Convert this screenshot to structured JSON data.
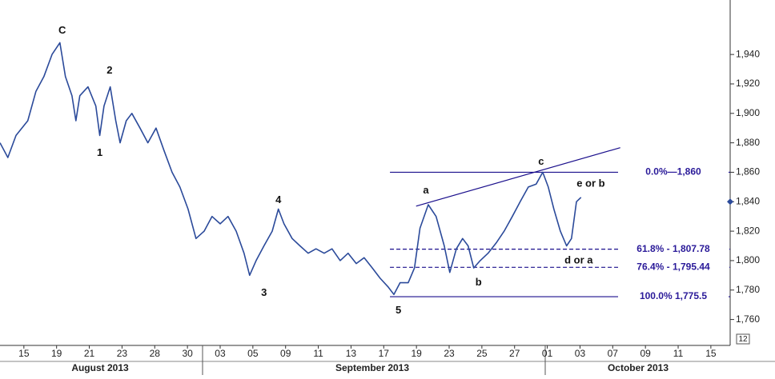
{
  "chart_data": {
    "type": "line",
    "xlim": [
      -0.73,
      21.59
    ],
    "xticks": [
      {
        "value": 0,
        "label": "15"
      },
      {
        "value": 1,
        "label": "19"
      },
      {
        "value": 2,
        "label": "21"
      },
      {
        "value": 3,
        "label": "23"
      },
      {
        "value": 4,
        "label": "28"
      },
      {
        "value": 5,
        "label": "30"
      },
      {
        "value": 6,
        "label": "03"
      },
      {
        "value": 7,
        "label": "05"
      },
      {
        "value": 8,
        "label": "09"
      },
      {
        "value": 9,
        "label": "11"
      },
      {
        "value": 10,
        "label": "13"
      },
      {
        "value": 11,
        "label": "17"
      },
      {
        "value": 12,
        "label": "19"
      },
      {
        "value": 13,
        "label": "23"
      },
      {
        "value": 14,
        "label": "25"
      },
      {
        "value": 15,
        "label": "27"
      },
      {
        "value": 16,
        "label": "01"
      },
      {
        "value": 17,
        "label": "03"
      },
      {
        "value": 18,
        "label": "07"
      },
      {
        "value": 19,
        "label": "09"
      },
      {
        "value": 20,
        "label": "11"
      },
      {
        "value": 21,
        "label": "15"
      }
    ],
    "ylim": [
      1742.4,
      1977
    ],
    "yticks": [
      {
        "value": 1760,
        "label": "1,760"
      },
      {
        "value": 1780,
        "label": "1,780"
      },
      {
        "value": 1800,
        "label": "1,800"
      },
      {
        "value": 1820,
        "label": "1,820"
      },
      {
        "value": 1840,
        "label": "1,840"
      },
      {
        "value": 1860,
        "label": "1,860"
      },
      {
        "value": 1880,
        "label": "1,880"
      },
      {
        "value": 1900,
        "label": "1,900"
      },
      {
        "value": 1920,
        "label": "1,920"
      },
      {
        "value": 1940,
        "label": "1,940"
      }
    ],
    "months": [
      "August 2013",
      "September 2013",
      "October 2013"
    ],
    "corner_label": "12",
    "last_price": 1840,
    "series": [
      {
        "color": "#2b4a9a",
        "x": [
          -0.73,
          -0.49,
          -0.24,
          0.12,
          0.37,
          0.61,
          0.86,
          1.1,
          1.27,
          1.47,
          1.59,
          1.71,
          1.96,
          2.2,
          2.32,
          2.45,
          2.64,
          2.81,
          2.94,
          3.13,
          3.3,
          3.55,
          3.79,
          4.04,
          4.28,
          4.53,
          4.77,
          5.02,
          5.26,
          5.51,
          5.75,
          6.0,
          6.24,
          6.49,
          6.73,
          6.9,
          7.1,
          7.34,
          7.59,
          7.78,
          7.95,
          8.2,
          8.44,
          8.69,
          8.93,
          9.18,
          9.42,
          9.67,
          9.91,
          10.16,
          10.4,
          10.65,
          10.89,
          11.14,
          11.31,
          11.5,
          11.75,
          11.94,
          12.11,
          12.36,
          12.6,
          12.85,
          13.02,
          13.22,
          13.41,
          13.58,
          13.75,
          13.95,
          14.19,
          14.44,
          14.68,
          14.93,
          15.17,
          15.42,
          15.66,
          15.86,
          16.03,
          16.2,
          16.4,
          16.59,
          16.74,
          16.89,
          17.03
        ],
        "values": [
          1880,
          1870,
          1885,
          1895,
          1915,
          1925,
          1940,
          1948,
          1925,
          1912,
          1895,
          1912,
          1918,
          1905,
          1885,
          1905,
          1918,
          1895,
          1880,
          1895,
          1900,
          1890,
          1880,
          1890,
          1875,
          1860,
          1850,
          1835,
          1815,
          1820,
          1830,
          1825,
          1830,
          1820,
          1805,
          1790,
          1800,
          1810,
          1820,
          1835,
          1825,
          1815,
          1810,
          1805,
          1808,
          1805,
          1808,
          1800,
          1805,
          1798,
          1802,
          1795,
          1788,
          1782,
          1777,
          1785,
          1785,
          1795,
          1822,
          1838,
          1830,
          1810,
          1792,
          1808,
          1815,
          1810,
          1795,
          1800,
          1805,
          1812,
          1820,
          1830,
          1840,
          1850,
          1852,
          1860,
          1850,
          1835,
          1820,
          1810,
          1815,
          1840,
          1843
        ]
      }
    ],
    "fib_levels": [
      {
        "label": "0.0%—1,860",
        "value": 1860,
        "style": "solid",
        "start_x": 11.19
      },
      {
        "label": "61.8% - 1,807.78",
        "value": 1807.78,
        "style": "dashed",
        "start_x": 11.19
      },
      {
        "label": "76.4% - 1,795.44",
        "value": 1795.44,
        "style": "dashed",
        "start_x": 11.19
      },
      {
        "label": "100.0% 1,775.5",
        "value": 1775.5,
        "style": "solid",
        "start_x": 11.19
      }
    ],
    "fib_color": "#1a0f8c",
    "trendline": {
      "x": [
        11.99,
        18.23
      ],
      "values": [
        1837,
        1876.7
      ]
    },
    "wave_labels": [
      {
        "text": "C",
        "x": 1.17,
        "y": 1956
      },
      {
        "text": "1",
        "x": 2.32,
        "y": 1873
      },
      {
        "text": "2",
        "x": 2.62,
        "y": 1929
      },
      {
        "text": "3",
        "x": 7.34,
        "y": 1778
      },
      {
        "text": "4",
        "x": 7.78,
        "y": 1841
      },
      {
        "text": "5",
        "x": 11.45,
        "y": 1766
      },
      {
        "text": "a",
        "x": 12.29,
        "y": 1847.5
      },
      {
        "text": "b",
        "x": 13.9,
        "y": 1785
      },
      {
        "text": "c",
        "x": 15.81,
        "y": 1867
      },
      {
        "text": "e or b",
        "x": 17.33,
        "y": 1852
      },
      {
        "text": "d or a",
        "x": 16.96,
        "y": 1800
      }
    ]
  }
}
